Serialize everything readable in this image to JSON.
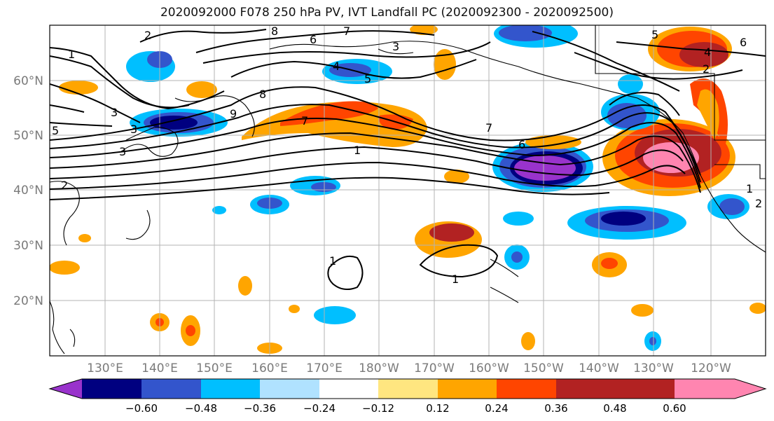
{
  "title": "2020092000 F078 250 hPa PV, IVT Landfall PC (2020092300 - 2020092500)",
  "lon_labels": [
    "130°E",
    "140°E",
    "150°E",
    "160°E",
    "170°E",
    "180°W",
    "170°W",
    "160°W",
    "150°W",
    "140°W",
    "130°W",
    "120°W"
  ],
  "lat_labels": [
    "60°N",
    "50°N",
    "40°N",
    "30°N",
    "20°N"
  ],
  "contour_labels": [
    "1",
    "2",
    "3",
    "3",
    "3",
    "5",
    "6",
    "7",
    "8",
    "5",
    "4",
    "3",
    "8",
    "9",
    "7",
    "1",
    "7",
    "6",
    "5",
    "4",
    "2",
    "6",
    "1",
    "1",
    "1",
    "2",
    "2"
  ],
  "colorbar": {
    "ticks": [
      "−0.60",
      "−0.48",
      "−0.36",
      "−0.24",
      "−0.12",
      "0.12",
      "0.24",
      "0.36",
      "0.48",
      "0.60"
    ],
    "colors": [
      "#9933cc",
      "#000080",
      "#3355cc",
      "#00bfff",
      "#b0e2ff",
      "#ffffff",
      "#ffe680",
      "#ffa500",
      "#ff4500",
      "#b22222",
      "#ff85b0"
    ]
  }
}
